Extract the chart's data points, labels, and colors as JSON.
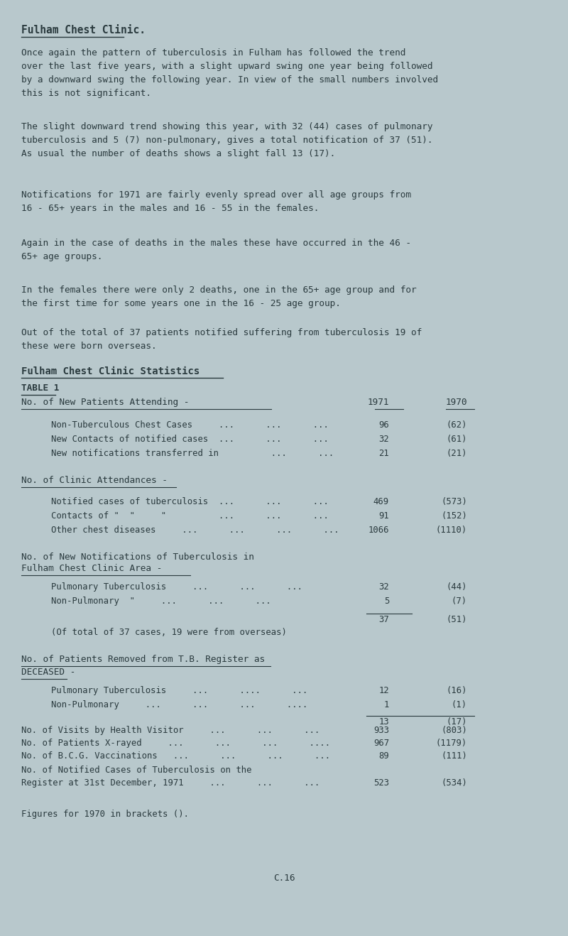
{
  "bg_color": "#b8c8cc",
  "text_color": "#2a3a3e",
  "title": "Fulham Chest Clinic.",
  "para1": "Once again the pattern of tuberculosis in Fulham has followed the trend\nover the last five years, with a slight upward swing one year being followed\nby a downward swing the following year. In view of the small numbers involved\nthis is not significant.",
  "para2": "The slight downward trend showing this year, with 32 (44) cases of pulmonary\ntuberculosis and 5 (7) non-pulmonary, gives a total notification of 37 (51).\nAs usual the number of deaths shows a slight fall 13 (17).",
  "para3": "Notifications for 1971 are fairly evenly spread over all age groups from\n16 - 65+ years in the males and 16 - 55 in the females.",
  "para4": "Again in the case of deaths in the males these have occurred in the 46 -\n65+ age groups.",
  "para5": "In the females there were only 2 deaths, one in the 65+ age group and for\nthe first time for some years one in the 16 - 25 age group.",
  "para6": "Out of the total of 37 patients notified suffering from tuberculosis 19 of\nthese were born overseas.",
  "section_title": "Fulham Chest Clinic Statistics",
  "table_label": "TABLE 1",
  "col_header_label": "No. of New Patients Attending -",
  "col_1971": "1971",
  "col_1970": "1970",
  "section2_label": "No. of Clinic Attendances -",
  "section3_label_line1": "No. of New Notifications of Tuberculosis in",
  "section3_label_line2": "Fulham Chest Clinic Area -",
  "section3_note": "(Of total of 37 cases, 19 were from overseas)",
  "section4_label_line1": "No. of Patients Removed from T.B. Register as",
  "section4_label_line2": "DECEASED -",
  "section6_label_line1": "No. of Notified Cases of Tuberculosis on the",
  "section6_label_line2": "Register at 31st December, 1971     ...      ...      ...",
  "section6_v1971": "523",
  "section6_v1970": "(534)",
  "footer_note": "Figures for 1970 in brackets ().",
  "footer_code": "C.16",
  "font_family": "DejaVu Sans Mono",
  "font_size_title": 10.5,
  "font_size_section": 10.0,
  "font_size_body": 9.2,
  "font_size_small": 8.8
}
